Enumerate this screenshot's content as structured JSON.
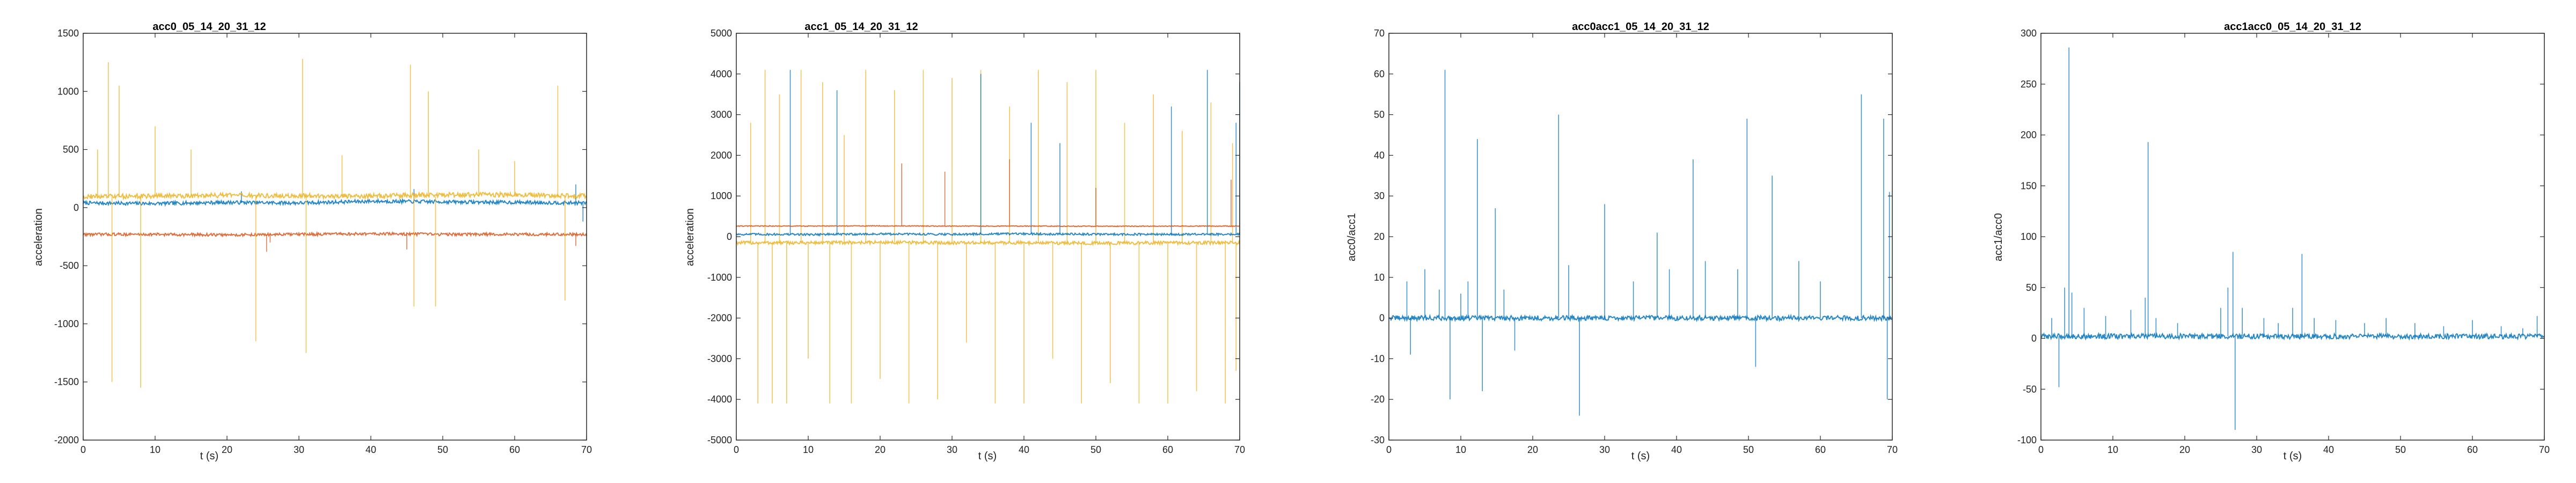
{
  "chart_data": [
    {
      "type": "line",
      "title": "acc0_05_14_20_31_12",
      "xlabel": "t (s)",
      "ylabel": "acceleration",
      "xlim": [
        0,
        70
      ],
      "ylim": [
        -2000,
        1500
      ],
      "xticks": [
        "0",
        "10",
        "20",
        "30",
        "40",
        "50",
        "60",
        "70"
      ],
      "yticks": [
        "-2000",
        "-1500",
        "-1000",
        "-500",
        "0",
        "500",
        "1000",
        "1500"
      ],
      "grid": false,
      "legend": "none",
      "series": [
        {
          "color": "#0072BD",
          "baseline": 40,
          "wobble": 15,
          "spikes": [
            [
              22,
              140
            ],
            [
              46,
              160
            ],
            [
              68.5,
              200
            ],
            [
              69.5,
              -120
            ]
          ],
          "x": [
            0,
            10,
            20,
            30,
            40,
            50,
            60,
            70
          ],
          "values": [
            40,
            35,
            45,
            40,
            55,
            50,
            45,
            40
          ]
        },
        {
          "color": "#D95319",
          "baseline": -230,
          "wobble": 12,
          "spikes": [
            [
              25.5,
              -380
            ],
            [
              26,
              -300
            ],
            [
              45,
              -360
            ],
            [
              68.5,
              -330
            ]
          ],
          "x": [
            0,
            10,
            20,
            30,
            40,
            50,
            60,
            70
          ],
          "values": [
            -230,
            -230,
            -235,
            -230,
            -225,
            -230,
            -230,
            -230
          ]
        },
        {
          "color": "#EDB120",
          "baseline": 95,
          "wobble": 20,
          "spikes": [
            [
              2,
              500
            ],
            [
              3.5,
              1250
            ],
            [
              4,
              -1500
            ],
            [
              5,
              1050
            ],
            [
              8,
              -1550
            ],
            [
              10,
              700
            ],
            [
              15,
              500
            ],
            [
              24,
              -1150
            ],
            [
              30.5,
              1280
            ],
            [
              31,
              -1250
            ],
            [
              36,
              450
            ],
            [
              45.5,
              1230
            ],
            [
              46,
              -850
            ],
            [
              48,
              1000
            ],
            [
              49,
              -850
            ],
            [
              55,
              500
            ],
            [
              60,
              400
            ],
            [
              66,
              1050
            ],
            [
              67,
              -800
            ]
          ],
          "x": [
            0,
            10,
            20,
            30,
            40,
            50,
            60,
            70
          ],
          "values": [
            95,
            100,
            105,
            100,
            100,
            110,
            110,
            100
          ]
        }
      ]
    },
    {
      "type": "line",
      "title": "acc1_05_14_20_31_12",
      "xlabel": "t (s)",
      "ylabel": "acceleration",
      "xlim": [
        0,
        70
      ],
      "ylim": [
        -5000,
        5000
      ],
      "xticks": [
        "0",
        "10",
        "20",
        "30",
        "40",
        "50",
        "60",
        "70"
      ],
      "yticks": [
        "-5000",
        "-4000",
        "-3000",
        "-2000",
        "-1000",
        "0",
        "1000",
        "2000",
        "3000",
        "4000",
        "5000"
      ],
      "grid": false,
      "legend": "none",
      "series": [
        {
          "color": "#EDB120",
          "baseline": -150,
          "wobble": 40,
          "spikes": [
            [
              2,
              2800
            ],
            [
              3,
              -4100
            ],
            [
              4,
              4100
            ],
            [
              5,
              -4100
            ],
            [
              6,
              3500
            ],
            [
              7,
              -4100
            ],
            [
              9,
              4100
            ],
            [
              10,
              -3000
            ],
            [
              12,
              3800
            ],
            [
              13,
              -4100
            ],
            [
              15,
              2500
            ],
            [
              16,
              -4100
            ],
            [
              18,
              4100
            ],
            [
              20,
              -3500
            ],
            [
              22,
              3600
            ],
            [
              24,
              -4100
            ],
            [
              26,
              4100
            ],
            [
              28,
              -4000
            ],
            [
              30,
              3900
            ],
            [
              32,
              -2600
            ],
            [
              34,
              4100
            ],
            [
              36,
              -4100
            ],
            [
              38,
              3200
            ],
            [
              40,
              -4100
            ],
            [
              42,
              4100
            ],
            [
              44,
              -3000
            ],
            [
              46,
              3800
            ],
            [
              48,
              -4100
            ],
            [
              50,
              4100
            ],
            [
              52,
              -3600
            ],
            [
              54,
              2800
            ],
            [
              56,
              -4100
            ],
            [
              58,
              3500
            ],
            [
              60,
              -4100
            ],
            [
              62,
              2600
            ],
            [
              64,
              -3800
            ],
            [
              66,
              3300
            ],
            [
              68,
              -4100
            ],
            [
              69,
              2300
            ],
            [
              69.5,
              -3300
            ]
          ],
          "x": [
            0,
            10,
            20,
            30,
            40,
            50,
            60,
            70
          ],
          "values": [
            -150,
            -150,
            -140,
            -150,
            -150,
            -160,
            -150,
            -150
          ]
        },
        {
          "color": "#0072BD",
          "baseline": 60,
          "wobble": 25,
          "spikes": [
            [
              7.5,
              4100
            ],
            [
              14,
              3600
            ],
            [
              34,
              4000
            ],
            [
              41,
              2800
            ],
            [
              45,
              2300
            ],
            [
              60.5,
              3200
            ],
            [
              65.5,
              4100
            ],
            [
              69.5,
              2800
            ],
            [
              70,
              3800
            ]
          ],
          "x": [
            0,
            10,
            20,
            30,
            40,
            50,
            60,
            70
          ],
          "values": [
            60,
            55,
            65,
            60,
            70,
            60,
            55,
            60
          ]
        },
        {
          "color": "#D95319",
          "baseline": 260,
          "wobble": 10,
          "spikes": [
            [
              23,
              1800
            ],
            [
              29,
              1600
            ],
            [
              38,
              1900
            ],
            [
              50,
              1200
            ],
            [
              68.8,
              1400
            ]
          ],
          "x": [
            0,
            10,
            20,
            30,
            40,
            50,
            60,
            70
          ],
          "values": [
            260,
            260,
            265,
            260,
            260,
            255,
            260,
            260
          ]
        }
      ]
    },
    {
      "type": "line",
      "title": "acc0acc1_05_14_20_31_12",
      "xlabel": "t (s)",
      "ylabel": "acc0/acc1",
      "xlim": [
        0,
        70
      ],
      "ylim": [
        -30,
        70
      ],
      "xticks": [
        "0",
        "10",
        "20",
        "30",
        "40",
        "50",
        "60",
        "70"
      ],
      "yticks": [
        "-30",
        "-20",
        "-10",
        "0",
        "10",
        "20",
        "30",
        "40",
        "50",
        "60",
        "70"
      ],
      "grid": false,
      "legend": "none",
      "series": [
        {
          "color": "#0072BD",
          "baseline": 0,
          "wobble": 0.6,
          "spikes": [
            [
              2.5,
              9
            ],
            [
              3,
              -9
            ],
            [
              5,
              12
            ],
            [
              7,
              7
            ],
            [
              7.8,
              61
            ],
            [
              8.5,
              -20
            ],
            [
              10,
              6
            ],
            [
              11,
              9
            ],
            [
              12.3,
              44
            ],
            [
              13,
              -18
            ],
            [
              14.8,
              27
            ],
            [
              16,
              7
            ],
            [
              17.5,
              -8
            ],
            [
              23.6,
              50
            ],
            [
              25,
              13
            ],
            [
              26.5,
              -24
            ],
            [
              30,
              28
            ],
            [
              34,
              9
            ],
            [
              37.3,
              21
            ],
            [
              39,
              12
            ],
            [
              42.3,
              39
            ],
            [
              44,
              14
            ],
            [
              48.5,
              12
            ],
            [
              49.8,
              49
            ],
            [
              51,
              -12
            ],
            [
              53.3,
              35
            ],
            [
              57,
              14
            ],
            [
              60,
              9
            ],
            [
              65.7,
              55
            ],
            [
              68.8,
              49
            ],
            [
              69.3,
              -20
            ],
            [
              69.6,
              31
            ]
          ],
          "x": [
            0,
            10,
            20,
            30,
            40,
            50,
            60,
            70
          ],
          "values": [
            0,
            0,
            0,
            0,
            0,
            0,
            0,
            0
          ]
        }
      ]
    },
    {
      "type": "line",
      "title": "acc1acc0_05_14_20_31_12",
      "xlabel": "t (s)",
      "ylabel": "acc1/acc0",
      "xlim": [
        0,
        70
      ],
      "ylim": [
        -100,
        300
      ],
      "xticks": [
        "0",
        "10",
        "20",
        "30",
        "40",
        "50",
        "60",
        "70"
      ],
      "yticks": [
        "-100",
        "-50",
        "0",
        "50",
        "100",
        "150",
        "200",
        "250",
        "300"
      ],
      "grid": false,
      "legend": "none",
      "series": [
        {
          "color": "#0072BD",
          "baseline": 2,
          "wobble": 2.5,
          "spikes": [
            [
              1.5,
              20
            ],
            [
              2.5,
              -48
            ],
            [
              3.3,
              50
            ],
            [
              3.9,
              286
            ],
            [
              4.3,
              45
            ],
            [
              6,
              30
            ],
            [
              9,
              22
            ],
            [
              12.5,
              28
            ],
            [
              14.5,
              40
            ],
            [
              14.9,
              193
            ],
            [
              16,
              20
            ],
            [
              19,
              15
            ],
            [
              25,
              30
            ],
            [
              26,
              50
            ],
            [
              26.7,
              85
            ],
            [
              27,
              -90
            ],
            [
              28,
              30
            ],
            [
              31,
              20
            ],
            [
              33,
              15
            ],
            [
              35,
              30
            ],
            [
              36.3,
              83
            ],
            [
              38,
              20
            ],
            [
              41,
              18
            ],
            [
              45,
              15
            ],
            [
              48,
              20
            ],
            [
              52,
              15
            ],
            [
              56,
              12
            ],
            [
              60,
              18
            ],
            [
              64,
              12
            ],
            [
              67,
              10
            ],
            [
              69,
              22
            ]
          ],
          "x": [
            0,
            10,
            20,
            30,
            40,
            50,
            60,
            70
          ],
          "values": [
            2,
            2,
            2,
            2,
            2,
            2,
            2,
            2
          ]
        }
      ]
    }
  ]
}
